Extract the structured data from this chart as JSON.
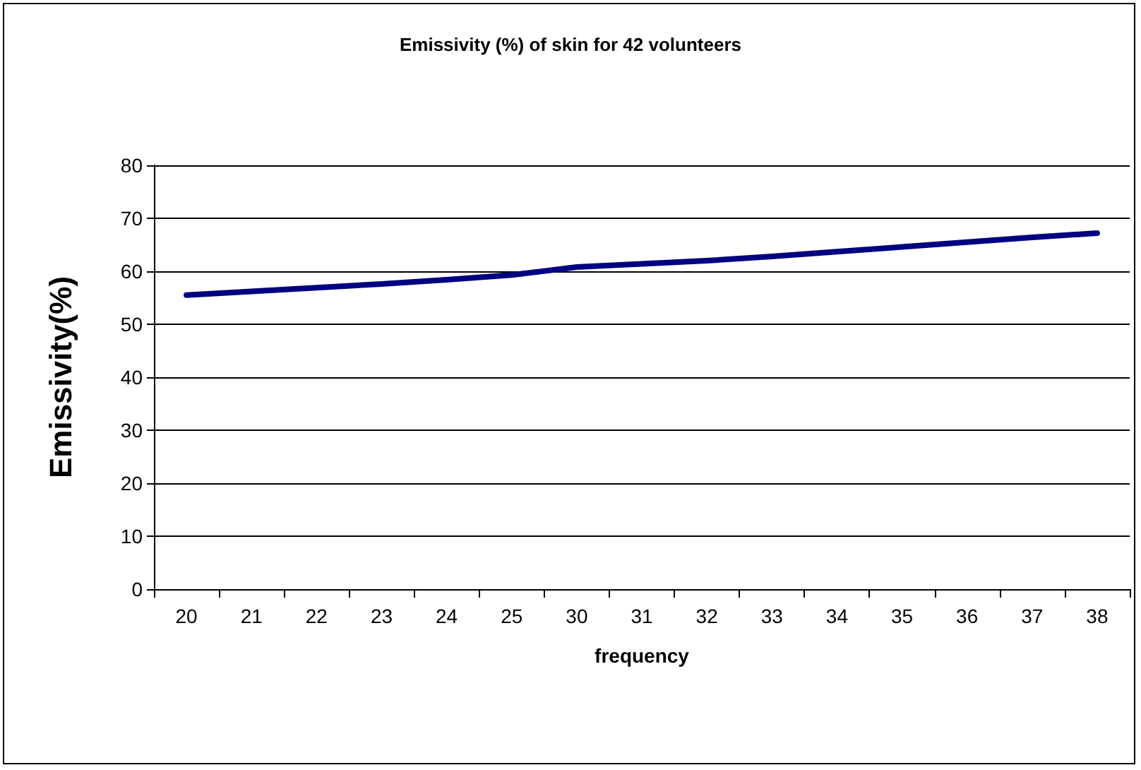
{
  "chart_data": {
    "type": "line",
    "title": "Emissivity (%) of skin for 42 volunteers",
    "xlabel": "frequency",
    "ylabel": "Emissivity(%)",
    "categories": [
      "20",
      "21",
      "22",
      "23",
      "24",
      "25",
      "30",
      "31",
      "32",
      "33",
      "34",
      "35",
      "36",
      "37",
      "38"
    ],
    "series": [
      {
        "color": "#000080",
        "values": [
          55.5,
          56.2,
          56.9,
          57.6,
          58.4,
          59.3,
          60.8,
          61.4,
          62.0,
          62.8,
          63.7,
          64.6,
          65.5,
          66.4,
          67.2
        ]
      }
    ],
    "ylim": [
      0,
      80
    ],
    "yticks": [
      0,
      10,
      20,
      30,
      40,
      50,
      60,
      70,
      80
    ],
    "grid": "y",
    "marker": "none",
    "line_style": "solid"
  }
}
